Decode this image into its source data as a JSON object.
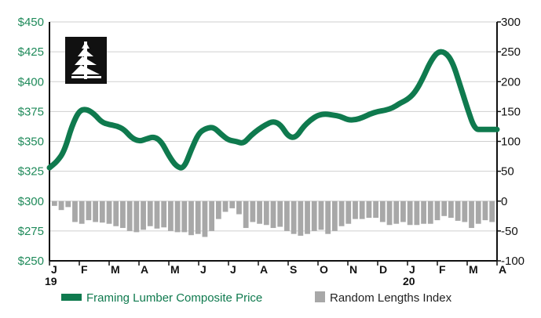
{
  "chart_data": {
    "type": "line",
    "colors": {
      "line": "#0f7a4e",
      "bars": "#a8a8a8",
      "left_axis": "#1f8a5a",
      "right_axis": "#111111",
      "grid": "#cfcfcf"
    },
    "left_axis": {
      "range": [
        250,
        450
      ],
      "ticks": [
        "$450",
        "$425",
        "$400",
        "$375",
        "$350",
        "$325",
        "$300",
        "$275",
        "$250"
      ],
      "tick_values": [
        450,
        425,
        400,
        375,
        350,
        325,
        300,
        275,
        250
      ]
    },
    "right_axis": {
      "range": [
        -100,
        300
      ],
      "ticks": [
        "300",
        "250",
        "200",
        "150",
        "100",
        "50",
        "0",
        "-50",
        "-100"
      ],
      "tick_values": [
        300,
        250,
        200,
        150,
        100,
        50,
        0,
        -50,
        -100
      ]
    },
    "x_axis": {
      "range": [
        0,
        15
      ],
      "months": [
        {
          "label": "J",
          "x": 0
        },
        {
          "label": "F",
          "x": 1
        },
        {
          "label": "M",
          "x": 2
        },
        {
          "label": "A",
          "x": 3
        },
        {
          "label": "M",
          "x": 4
        },
        {
          "label": "J",
          "x": 5
        },
        {
          "label": "J",
          "x": 6
        },
        {
          "label": "A",
          "x": 7
        },
        {
          "label": "S",
          "x": 8
        },
        {
          "label": "O",
          "x": 9
        },
        {
          "label": "N",
          "x": 10
        },
        {
          "label": "D",
          "x": 11
        },
        {
          "label": "J",
          "x": 12
        },
        {
          "label": "F",
          "x": 13
        },
        {
          "label": "M",
          "x": 14
        },
        {
          "label": "A",
          "x": 15
        }
      ],
      "years": [
        {
          "label": "19",
          "x": 0
        },
        {
          "label": "20",
          "x": 12
        }
      ]
    },
    "series": [
      {
        "name": "Framing Lumber Composite Price",
        "axis": "left",
        "kind": "line",
        "x": [
          0,
          0.25,
          0.5,
          0.75,
          1.0,
          1.25,
          1.5,
          1.75,
          2.0,
          2.25,
          2.5,
          2.75,
          3.0,
          3.25,
          3.5,
          3.75,
          4.0,
          4.25,
          4.5,
          4.75,
          5.0,
          5.25,
          5.5,
          5.75,
          6.0,
          6.25,
          6.5,
          6.75,
          7.0,
          7.25,
          7.5,
          7.75,
          8.0,
          8.25,
          8.5,
          8.75,
          9.0,
          9.25,
          9.5,
          9.75,
          10.0,
          10.25,
          10.5,
          10.75,
          11.0,
          11.25,
          11.5,
          11.75,
          12.0,
          12.25,
          12.5,
          12.75,
          13.0,
          13.25,
          13.5,
          13.75,
          14.0,
          14.25,
          14.5,
          14.75,
          15.0
        ],
        "values": [
          328,
          333,
          342,
          363,
          376,
          377,
          373,
          366,
          364,
          363,
          360,
          353,
          350,
          352,
          354,
          350,
          338,
          329,
          327,
          343,
          357,
          361,
          362,
          356,
          351,
          350,
          348,
          355,
          360,
          364,
          367,
          364,
          354,
          353,
          362,
          368,
          372,
          373,
          372,
          371,
          368,
          368,
          370,
          373,
          375,
          376,
          378,
          382,
          385,
          391,
          402,
          416,
          425,
          425,
          417,
          398,
          378,
          360,
          360,
          360,
          360
        ]
      },
      {
        "name": "Random Lengths Index",
        "axis": "right",
        "kind": "bar",
        "values": [
          -8,
          -15,
          -10,
          -35,
          -38,
          -32,
          -35,
          -36,
          -38,
          -42,
          -45,
          -50,
          -52,
          -48,
          -42,
          -46,
          -44,
          -50,
          -52,
          -52,
          -57,
          -55,
          -60,
          -50,
          -30,
          -18,
          -12,
          -22,
          -45,
          -35,
          -38,
          -40,
          -45,
          -43,
          -50,
          -55,
          -58,
          -55,
          -50,
          -48,
          -55,
          -50,
          -42,
          -38,
          -30,
          -30,
          -28,
          -28,
          -35,
          -40,
          -38,
          -35,
          -40,
          -40,
          -38,
          -38,
          -32,
          -25,
          -28,
          -33,
          -35,
          -45,
          -38,
          -32,
          -35
        ]
      }
    ],
    "legend": {
      "placement": "bottom"
    }
  }
}
